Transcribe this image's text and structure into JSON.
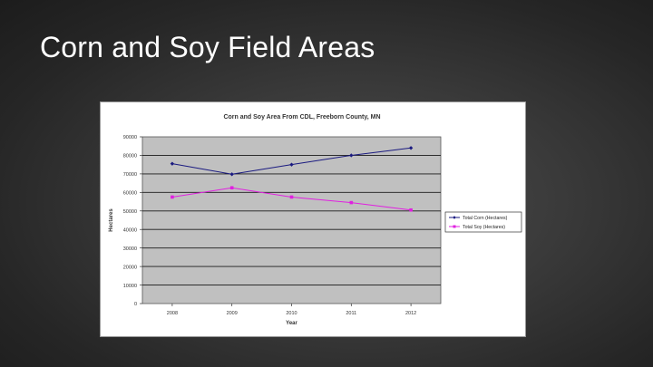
{
  "slide": {
    "title": "Corn and Soy Field Areas"
  },
  "chart_data": {
    "type": "line",
    "title": "Corn and Soy Area From CDL, Freeborn County, MN",
    "xlabel": "Year",
    "ylabel": "Hectares",
    "categories": [
      "2008",
      "2009",
      "2010",
      "2011",
      "2012"
    ],
    "ylim": [
      0,
      90000
    ],
    "yticks": [
      "0",
      "10000",
      "20000",
      "30000",
      "40000",
      "50000",
      "60000",
      "70000",
      "80000",
      "90000"
    ],
    "grid": true,
    "legend_position": "right",
    "plot_background": "#c0c0c0",
    "series": [
      {
        "name": "Total Corn (Hectares)",
        "color": "#1a1a80",
        "values": [
          75500,
          69800,
          75000,
          80000,
          84000
        ]
      },
      {
        "name": "Total Soy (Hectares)",
        "color": "#e020e0",
        "values": [
          57500,
          62500,
          57500,
          54500,
          50500
        ]
      }
    ]
  }
}
